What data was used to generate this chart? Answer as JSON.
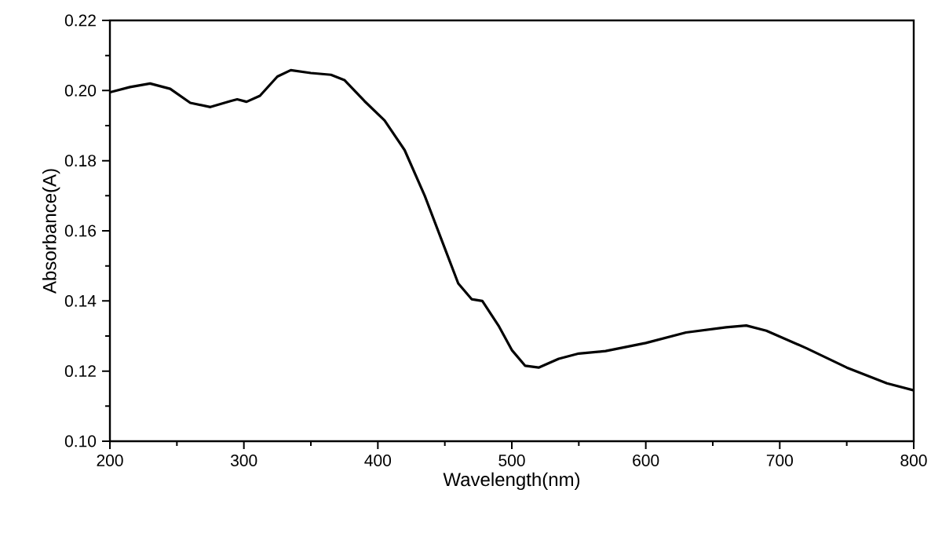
{
  "chart_data": {
    "type": "line",
    "xlabel": "Wavelength(nm)",
    "ylabel": "Absorbance(A)",
    "x": [
      200,
      215,
      230,
      245,
      260,
      275,
      290,
      295,
      302,
      312,
      325,
      335,
      350,
      365,
      375,
      390,
      405,
      420,
      435,
      450,
      460,
      470,
      478,
      490,
      500,
      510,
      520,
      535,
      550,
      570,
      600,
      630,
      660,
      675,
      690,
      720,
      750,
      780,
      800
    ],
    "series": [
      {
        "color": "#000000",
        "values": [
          0.1995,
          0.201,
          0.202,
          0.2005,
          0.1965,
          0.1953,
          0.197,
          0.1975,
          0.1968,
          0.1985,
          0.204,
          0.2058,
          0.205,
          0.2045,
          0.203,
          0.197,
          0.1915,
          0.183,
          0.17,
          0.155,
          0.145,
          0.1405,
          0.14,
          0.133,
          0.126,
          0.1215,
          0.121,
          0.1235,
          0.125,
          0.1257,
          0.128,
          0.131,
          0.1325,
          0.133,
          0.1315,
          0.1265,
          0.121,
          0.1165,
          0.1145
        ]
      }
    ],
    "xlim": [
      200,
      800
    ],
    "ylim": [
      0.1,
      0.22
    ],
    "xticks": [
      200,
      300,
      400,
      500,
      600,
      700,
      800
    ],
    "yticks": [
      {
        "value": 0.1,
        "label": "0.10"
      },
      {
        "value": 0.12,
        "label": "0.12"
      },
      {
        "value": 0.14,
        "label": "0.14"
      },
      {
        "value": 0.16,
        "label": "0.16"
      },
      {
        "value": 0.18,
        "label": "0.18"
      },
      {
        "value": 0.2,
        "label": "0.20"
      },
      {
        "value": 0.22,
        "label": "0.22"
      }
    ],
    "marker": "none",
    "line_style": "solid"
  }
}
